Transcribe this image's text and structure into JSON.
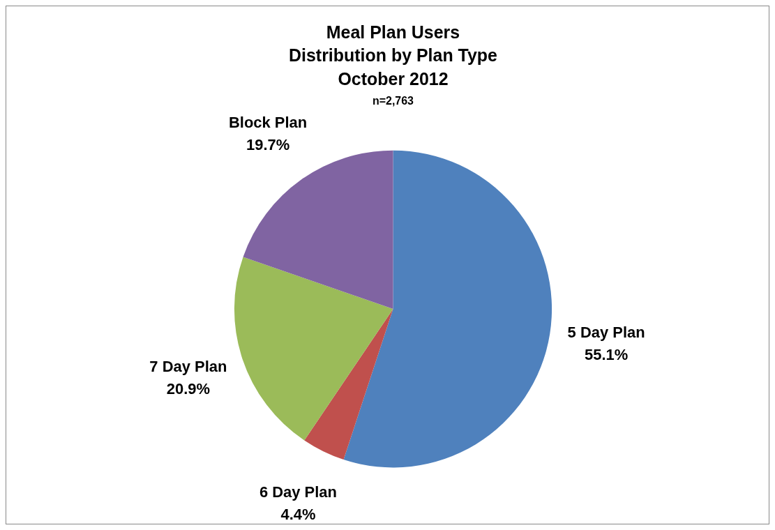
{
  "chart_data": {
    "type": "pie",
    "title": "Meal Plan Users\nDistribution by Plan Type\nOctober 2012",
    "subtitle": "n=2,763",
    "categories": [
      "5 Day Plan",
      "6 Day Plan",
      "7 Day Plan",
      "Block Plan"
    ],
    "values": [
      55.1,
      4.4,
      20.9,
      19.7
    ],
    "value_labels": [
      "55.1%",
      "4.4%",
      "20.9%",
      "19.7%"
    ],
    "colors": [
      "#4f81bd",
      "#c0504d",
      "#9bbb59",
      "#8064a2"
    ],
    "legend": false
  }
}
